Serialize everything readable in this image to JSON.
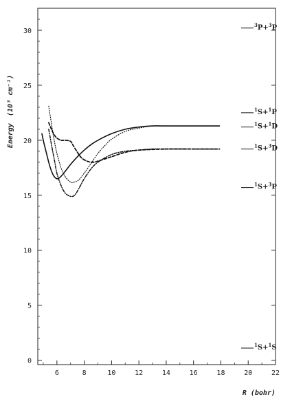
{
  "chart_data": {
    "type": "line",
    "xlabel": "R (bohr)",
    "ylabel": "Energy",
    "ylabel_unit": "(10³ cm⁻¹)",
    "xlim": [
      4.6,
      22
    ],
    "ylim": [
      -0.4,
      32
    ],
    "x_ticks": [
      6,
      8,
      10,
      12,
      14,
      16,
      18,
      20,
      22
    ],
    "y_ticks": [
      0,
      5,
      10,
      15,
      20,
      25,
      30
    ],
    "grid": false,
    "series": [
      {
        "style": "solid",
        "x": [
          4.9,
          5.0,
          5.2,
          5.4,
          5.6,
          5.8,
          6.0,
          6.2,
          6.5,
          7.0,
          7.5,
          8.0,
          8.5,
          9.0,
          10.0,
          11.0,
          12.0,
          13.0,
          14.0,
          16.0,
          17.9
        ],
        "y": [
          20.6,
          20.0,
          19.0,
          18.0,
          17.2,
          16.7,
          16.5,
          16.6,
          17.0,
          17.8,
          18.5,
          19.1,
          19.6,
          20.0,
          20.6,
          21.0,
          21.2,
          21.3,
          21.3,
          21.3,
          21.3
        ]
      },
      {
        "style": "dashed",
        "x": [
          5.4,
          5.6,
          5.8,
          6.0,
          6.3,
          6.6,
          7.0,
          7.2,
          7.5,
          7.8,
          8.2,
          8.6,
          9.0,
          10.0,
          11.0,
          12.0,
          14.0,
          16.0,
          17.9
        ],
        "y": [
          21.6,
          21.0,
          20.5,
          20.2,
          20.0,
          20.0,
          19.9,
          19.5,
          18.9,
          18.4,
          18.1,
          18.0,
          18.1,
          18.5,
          18.9,
          19.1,
          19.2,
          19.2,
          19.2
        ]
      },
      {
        "style": "dotted",
        "x": [
          5.4,
          5.6,
          5.8,
          6.0,
          6.3,
          6.6,
          7.0,
          7.3,
          7.6,
          8.0,
          8.5,
          9.0,
          9.5,
          10.0,
          11.0,
          12.0,
          13.0,
          14.0,
          16.0,
          17.9
        ],
        "y": [
          23.1,
          21.5,
          20.0,
          18.8,
          17.5,
          16.7,
          16.2,
          16.2,
          16.4,
          17.0,
          17.9,
          18.8,
          19.5,
          20.1,
          20.8,
          21.1,
          21.3,
          21.3,
          21.3,
          21.3
        ]
      },
      {
        "style": "dash-dot",
        "x": [
          5.4,
          5.6,
          5.8,
          6.0,
          6.3,
          6.6,
          7.0,
          7.3,
          7.6,
          8.0,
          8.5,
          9.0,
          10.0,
          11.0,
          12.0,
          13.0,
          14.0,
          16.0,
          17.9
        ],
        "y": [
          21.0,
          19.6,
          18.3,
          17.0,
          15.9,
          15.2,
          14.9,
          15.0,
          15.6,
          16.5,
          17.4,
          18.0,
          18.7,
          19.0,
          19.1,
          19.2,
          19.2,
          19.2,
          19.2
        ]
      }
    ],
    "levels": [
      {
        "label": [
          "3",
          "P+",
          "3",
          "P"
        ],
        "energy": 30.2
      },
      {
        "label": [
          "1",
          "S+",
          "1",
          "P"
        ],
        "energy": 22.5
      },
      {
        "label": [
          "1",
          "S+",
          "1",
          "D"
        ],
        "energy": 21.2
      },
      {
        "label": [
          "1",
          "S+",
          "3",
          "D"
        ],
        "energy": 19.2
      },
      {
        "label": [
          "1",
          "S+",
          "3",
          "P"
        ],
        "energy": 15.7
      },
      {
        "label": [
          "1",
          "S+",
          "1",
          "S"
        ],
        "energy": 1.1
      }
    ]
  }
}
